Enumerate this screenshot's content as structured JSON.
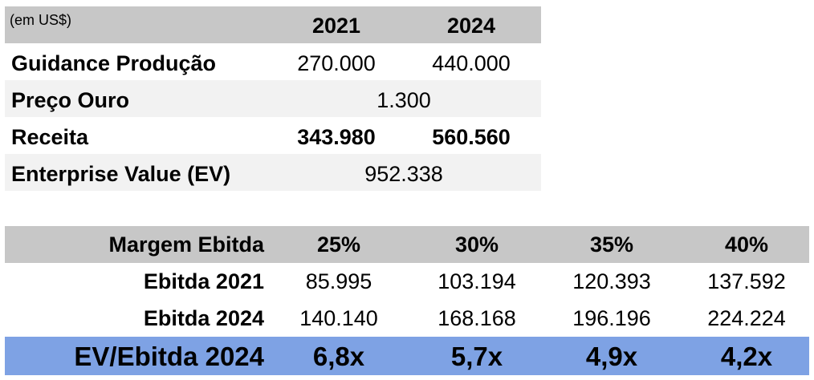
{
  "top_table": {
    "unit_label": "(em US$)",
    "years": [
      "2021",
      "2024"
    ],
    "rows": {
      "guidance": {
        "label": "Guidance Produção",
        "v2021": "270.000",
        "v2024": "440.000"
      },
      "preco": {
        "label": "Preço Ouro",
        "value": "1.300"
      },
      "receita": {
        "label": "Receita",
        "v2021": "343.980",
        "v2024": "560.560"
      },
      "ev": {
        "label": "Enterprise Value (EV)",
        "value": "952.338"
      }
    }
  },
  "bottom_table": {
    "header": {
      "label": "Margem Ebitda",
      "margins": [
        "25%",
        "30%",
        "35%",
        "40%"
      ]
    },
    "ebitda2021": {
      "label": "Ebitda 2021",
      "values": [
        "85.995",
        "103.194",
        "120.393",
        "137.592"
      ]
    },
    "ebitda2024": {
      "label": "Ebitda 2024",
      "values": [
        "140.140",
        "168.168",
        "196.196",
        "224.224"
      ]
    },
    "ev_ebitda": {
      "label": "EV/Ebitda 2024",
      "values": [
        "6,8x",
        "5,7x",
        "4,9x",
        "4,2x"
      ]
    }
  },
  "colors": {
    "header_gray": "#c7c7c7",
    "row_alt": "#f2f2f2",
    "highlight_blue": "#7ea2e4"
  }
}
